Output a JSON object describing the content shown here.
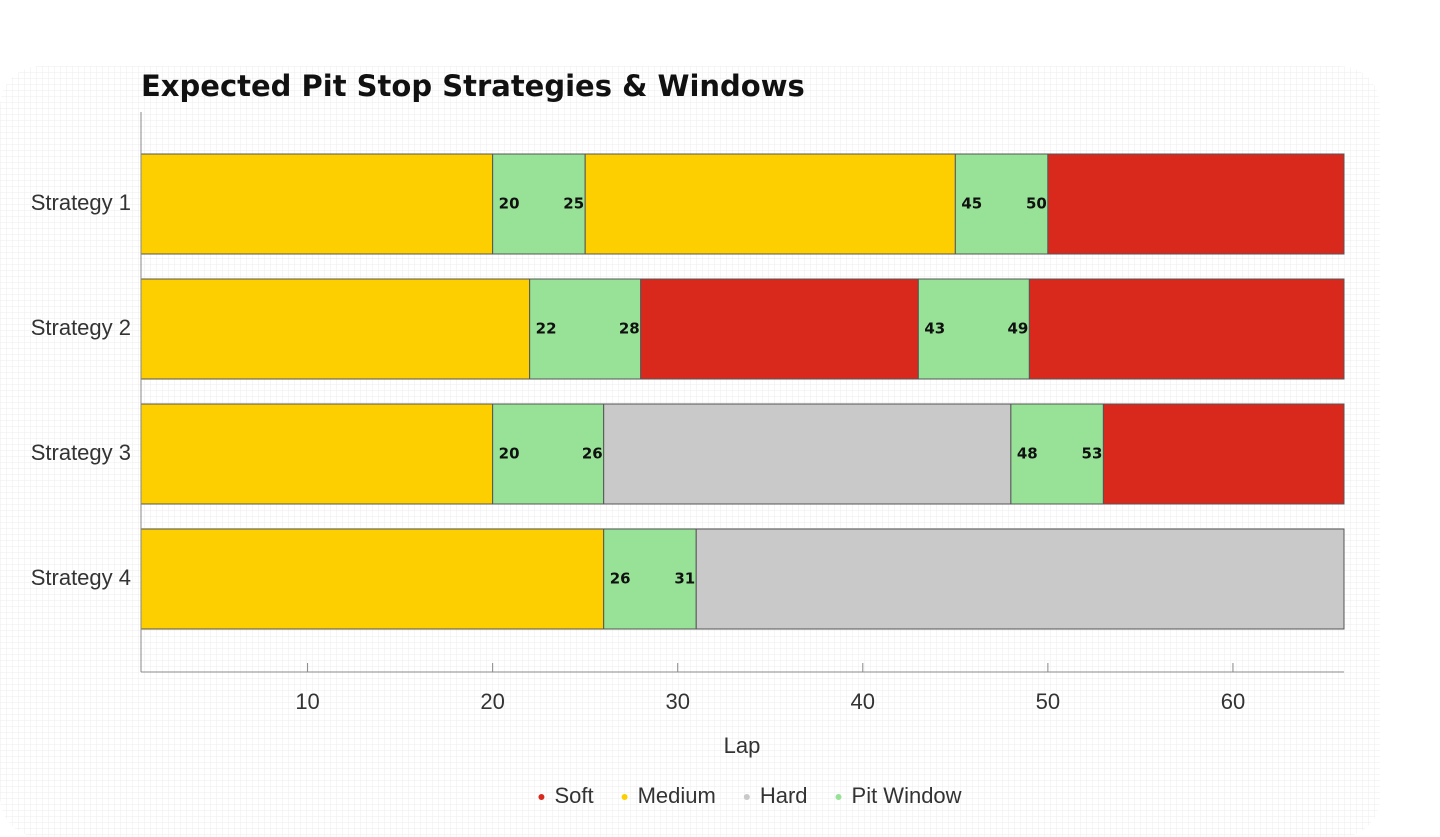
{
  "chart_data": {
    "type": "range-bar",
    "title": "Expected Pit Stop Strategies & Windows",
    "x_label": "Lap",
    "xlim": [
      1,
      66
    ],
    "xticks": [
      10,
      20,
      30,
      40,
      50,
      60
    ],
    "series": [
      {
        "name": "Soft",
        "color": "#d9291c"
      },
      {
        "name": "Medium",
        "color": "#fdcf00"
      },
      {
        "name": "Hard",
        "color": "#c9c9c9"
      },
      {
        "name": "Pit Window",
        "color": "#97e296"
      }
    ],
    "labeled_series": 3,
    "legend": "bottom",
    "rows": [
      {
        "label": "Strategy 1",
        "segments": [
          {
            "series": 1,
            "start": 1,
            "end": 20
          },
          {
            "series": 3,
            "start": 20,
            "end": 25
          },
          {
            "series": 1,
            "start": 25,
            "end": 45
          },
          {
            "series": 3,
            "start": 45,
            "end": 50
          },
          {
            "series": 0,
            "start": 50,
            "end": 66
          }
        ]
      },
      {
        "label": "Strategy 2",
        "segments": [
          {
            "series": 1,
            "start": 1,
            "end": 22
          },
          {
            "series": 3,
            "start": 22,
            "end": 28
          },
          {
            "series": 0,
            "start": 28,
            "end": 43
          },
          {
            "series": 3,
            "start": 43,
            "end": 49
          },
          {
            "series": 0,
            "start": 49,
            "end": 66
          }
        ]
      },
      {
        "label": "Strategy 3",
        "segments": [
          {
            "series": 1,
            "start": 1,
            "end": 20
          },
          {
            "series": 3,
            "start": 20,
            "end": 26
          },
          {
            "series": 2,
            "start": 26,
            "end": 48
          },
          {
            "series": 3,
            "start": 48,
            "end": 53
          },
          {
            "series": 0,
            "start": 53,
            "end": 66
          }
        ]
      },
      {
        "label": "Strategy 4",
        "segments": [
          {
            "series": 1,
            "start": 1,
            "end": 26
          },
          {
            "series": 3,
            "start": 26,
            "end": 31
          },
          {
            "series": 2,
            "start": 31,
            "end": 66
          }
        ]
      }
    ]
  }
}
